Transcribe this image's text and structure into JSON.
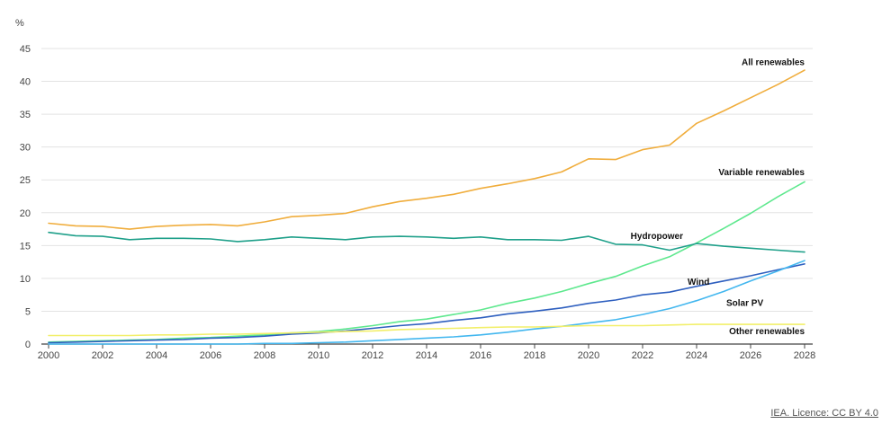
{
  "chart_data": {
    "type": "line",
    "ylabel": "%",
    "xlim": [
      2000,
      2028
    ],
    "ylim": [
      0,
      45
    ],
    "x_ticks": [
      2000,
      2002,
      2004,
      2006,
      2008,
      2010,
      2012,
      2014,
      2016,
      2018,
      2020,
      2022,
      2024,
      2026,
      2028
    ],
    "y_ticks": [
      0,
      5,
      10,
      15,
      20,
      25,
      30,
      35,
      40,
      45
    ],
    "grid": true,
    "x": [
      2000,
      2001,
      2002,
      2003,
      2004,
      2005,
      2006,
      2007,
      2008,
      2009,
      2010,
      2011,
      2012,
      2013,
      2014,
      2015,
      2016,
      2017,
      2018,
      2019,
      2020,
      2021,
      2022,
      2023,
      2024,
      2025,
      2026,
      2027,
      2028
    ],
    "series": [
      {
        "name": "All renewables",
        "color": "#f0ad3c",
        "values": [
          18.4,
          18.0,
          17.9,
          17.5,
          17.9,
          18.1,
          18.2,
          18.0,
          18.6,
          19.4,
          19.6,
          19.9,
          20.9,
          21.7,
          22.2,
          22.8,
          23.7,
          24.4,
          25.2,
          26.2,
          28.2,
          28.1,
          29.6,
          30.3,
          33.6,
          35.5,
          37.5,
          39.5,
          41.7
        ]
      },
      {
        "name": "Variable renewables",
        "color": "#5ee88e",
        "values": [
          0.3,
          0.4,
          0.5,
          0.6,
          0.7,
          0.9,
          1.0,
          1.2,
          1.4,
          1.7,
          1.9,
          2.3,
          2.8,
          3.4,
          3.8,
          4.5,
          5.2,
          6.2,
          7.0,
          8.0,
          9.2,
          10.3,
          11.9,
          13.3,
          15.4,
          17.6,
          19.9,
          22.4,
          24.7
        ]
      },
      {
        "name": "Hydropower",
        "color": "#1fa08a",
        "values": [
          17.0,
          16.5,
          16.4,
          15.9,
          16.1,
          16.1,
          16.0,
          15.6,
          15.9,
          16.3,
          16.1,
          15.9,
          16.3,
          16.4,
          16.3,
          16.1,
          16.3,
          15.9,
          15.9,
          15.8,
          16.4,
          15.2,
          15.1,
          14.3,
          15.3,
          14.9,
          14.6,
          14.3,
          14.0
        ]
      },
      {
        "name": "Wind",
        "color": "#2e5fbf",
        "values": [
          0.2,
          0.3,
          0.4,
          0.5,
          0.6,
          0.7,
          0.9,
          1.0,
          1.2,
          1.5,
          1.7,
          2.0,
          2.4,
          2.8,
          3.1,
          3.6,
          4.0,
          4.6,
          5.0,
          5.5,
          6.2,
          6.7,
          7.5,
          7.9,
          8.8,
          9.6,
          10.4,
          11.3,
          12.2
        ]
      },
      {
        "name": "Solar PV",
        "color": "#43b7ef",
        "values": [
          0.0,
          0.0,
          0.0,
          0.0,
          0.0,
          0.0,
          0.0,
          0.0,
          0.1,
          0.1,
          0.2,
          0.3,
          0.5,
          0.7,
          0.9,
          1.1,
          1.4,
          1.8,
          2.3,
          2.7,
          3.2,
          3.7,
          4.5,
          5.4,
          6.6,
          8.0,
          9.6,
          11.1,
          12.7
        ]
      },
      {
        "name": "Other renewables",
        "color": "#f2ef6a",
        "values": [
          1.3,
          1.3,
          1.3,
          1.3,
          1.4,
          1.4,
          1.5,
          1.5,
          1.6,
          1.7,
          1.8,
          1.9,
          2.0,
          2.2,
          2.3,
          2.4,
          2.5,
          2.6,
          2.6,
          2.7,
          2.8,
          2.8,
          2.8,
          2.9,
          3.0,
          3.0,
          3.0,
          3.0,
          3.0
        ]
      }
    ]
  },
  "licence_text": "IEA. Licence: CC BY 4.0"
}
